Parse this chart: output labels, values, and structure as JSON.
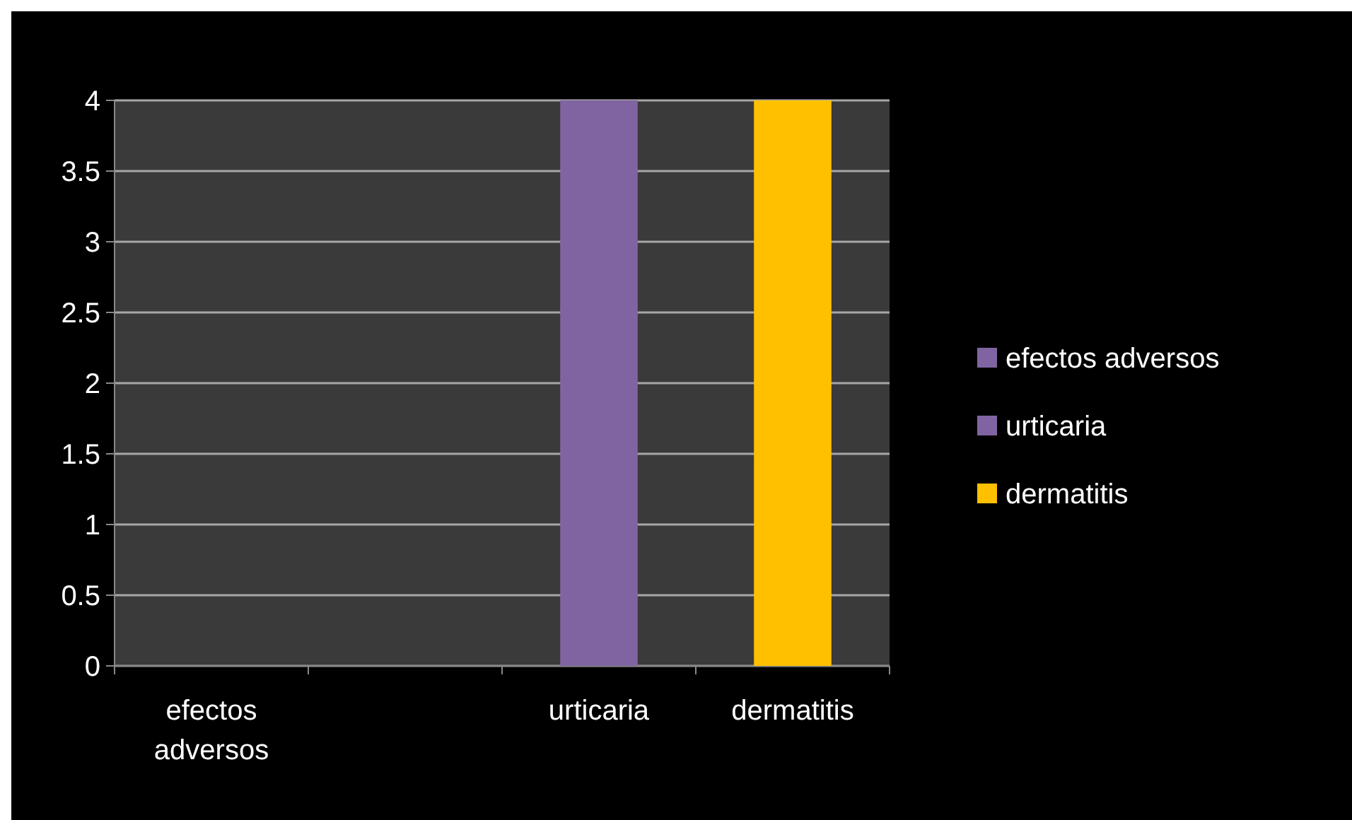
{
  "chart_data": {
    "type": "bar",
    "categories": [
      "efectos adversos",
      null,
      "urticaria",
      "dermatitis"
    ],
    "series": [
      {
        "name": "efectos adversos",
        "color": "#8064a2",
        "values": [
          0,
          null,
          null,
          null
        ]
      },
      {
        "name": "urticaria",
        "color": "#8064a2",
        "values": [
          null,
          null,
          4,
          null
        ]
      },
      {
        "name": "dermatitis",
        "color": "#ffc000",
        "values": [
          null,
          null,
          null,
          4
        ]
      }
    ],
    "ylim": [
      0,
      4
    ],
    "yticks": [
      0,
      0.5,
      1,
      1.5,
      2,
      2.5,
      3,
      3.5,
      4
    ],
    "grid": "y",
    "legend": "right"
  }
}
